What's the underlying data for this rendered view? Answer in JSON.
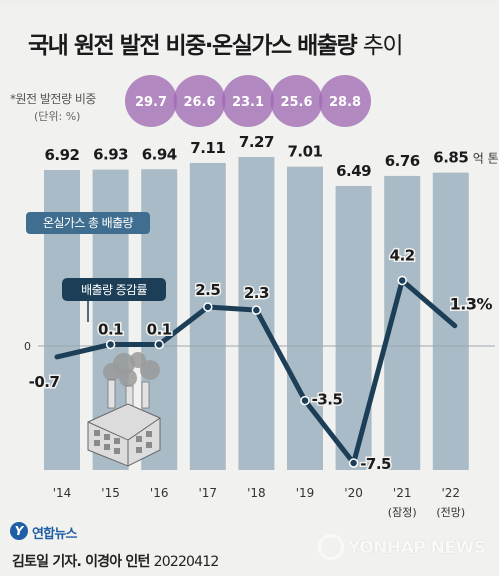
{
  "header": {
    "title_main": "국내 원전 발전 비중·온실가스 배출량",
    "title_suffix": "추이"
  },
  "nuclear_share": {
    "label": "*원전 발전량 비중",
    "unit": "(단위: %)",
    "values": [
      "29.7",
      "26.6",
      "23.1",
      "25.6",
      "28.8"
    ]
  },
  "bar_legend": "온실가스 총 배출량",
  "line_legend": "배출량 증감률",
  "emissions_unit": "억 톤",
  "colors": {
    "bar": "#a9bbc6",
    "line": "#1c3f57",
    "circle": "#a06ab4",
    "legend_box": "#3f6e90",
    "background": "#f1f1ef"
  },
  "chart_data": {
    "type": "bar",
    "categories": [
      "'14",
      "'15",
      "'16",
      "'17",
      "'18",
      "'19",
      "'20",
      "'21",
      "'22"
    ],
    "category_notes": [
      "",
      "",
      "",
      "",
      "",
      "",
      "",
      "(잠정)",
      "(전망)"
    ],
    "series": [
      {
        "name": "온실가스 총 배출량",
        "type": "bar",
        "values": [
          6.92,
          6.93,
          6.94,
          7.11,
          7.27,
          7.01,
          6.49,
          6.76,
          6.85
        ],
        "labels": [
          "6.92",
          "6.93",
          "6.94",
          "7.11",
          "7.27",
          "7.01",
          "6.49",
          "6.76",
          "6.85"
        ]
      },
      {
        "name": "배출량 증감률",
        "type": "line",
        "values": [
          -0.7,
          0.1,
          0.1,
          2.5,
          2.3,
          -3.5,
          -7.5,
          4.2,
          1.3
        ],
        "labels": [
          "-0.7",
          "0.1",
          "0.1",
          "2.5",
          "2.3",
          "-3.5",
          "-7.5",
          "4.2",
          "1.3%"
        ]
      }
    ],
    "zero_label": "0",
    "xlabel": "",
    "ylabel": ""
  },
  "footer": {
    "logo_text": "연합뉴스",
    "credit": "김토일 기자. 이경아 인턴",
    "date": "20220412",
    "watermark": "YONHAP NEWS"
  }
}
